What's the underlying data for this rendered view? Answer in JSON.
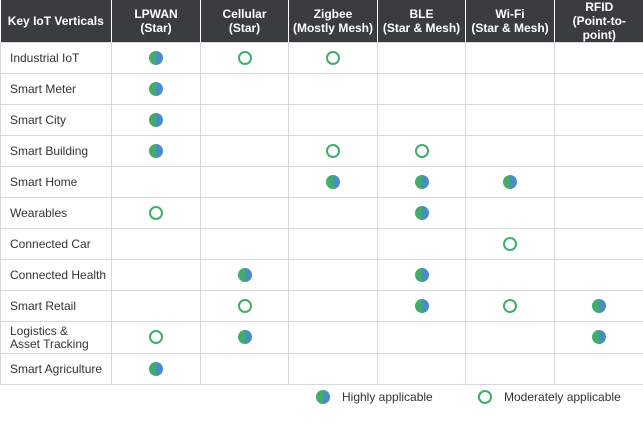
{
  "header": {
    "first_column": "Key IoT Verticals",
    "technologies": [
      {
        "name": "LPWAN",
        "topology": "(Star)"
      },
      {
        "name": "Cellular",
        "topology": "(Star)"
      },
      {
        "name": "Zigbee",
        "topology": "(Mostly Mesh)"
      },
      {
        "name": "BLE",
        "topology": "(Star & Mesh)"
      },
      {
        "name": "Wi-Fi",
        "topology": "(Star & Mesh)"
      },
      {
        "name": "RFID",
        "topology": "(Point-to-point)"
      }
    ]
  },
  "rows": [
    {
      "vertical": [
        "Industrial IoT"
      ],
      "ratings": [
        "high",
        "moderate",
        "moderate",
        "",
        "",
        ""
      ]
    },
    {
      "vertical": [
        "Smart Meter"
      ],
      "ratings": [
        "high",
        "",
        "",
        "",
        "",
        ""
      ]
    },
    {
      "vertical": [
        "Smart City"
      ],
      "ratings": [
        "high",
        "",
        "",
        "",
        "",
        ""
      ]
    },
    {
      "vertical": [
        "Smart Building"
      ],
      "ratings": [
        "high",
        "",
        "moderate",
        "moderate",
        "",
        ""
      ]
    },
    {
      "vertical": [
        "Smart Home"
      ],
      "ratings": [
        "",
        "",
        "high",
        "high",
        "high",
        ""
      ]
    },
    {
      "vertical": [
        "Wearables"
      ],
      "ratings": [
        "moderate",
        "",
        "",
        "high",
        "",
        ""
      ]
    },
    {
      "vertical": [
        "Connected Car"
      ],
      "ratings": [
        "",
        "",
        "",
        "",
        "moderate",
        ""
      ]
    },
    {
      "vertical": [
        "Connected Health"
      ],
      "ratings": [
        "",
        "high",
        "",
        "high",
        "",
        ""
      ]
    },
    {
      "vertical": [
        "Smart Retail"
      ],
      "ratings": [
        "",
        "moderate",
        "",
        "high",
        "moderate",
        "high"
      ]
    },
    {
      "vertical": [
        "Logistics &",
        "Asset Tracking"
      ],
      "ratings": [
        "moderate",
        "high",
        "",
        "",
        "",
        "high"
      ]
    },
    {
      "vertical": [
        "Smart Agriculture"
      ],
      "ratings": [
        "high",
        "",
        "",
        "",
        "",
        ""
      ]
    }
  ],
  "legend": {
    "high_label": "Highly applicable",
    "moderate_label": "Moderately applicable"
  },
  "colors": {
    "header_background": "#3a3d40",
    "high_dot_green": "#3fae6a",
    "high_dot_blue": "#4a8cc4",
    "moderate_ring": "#3fae6a",
    "grid_line": "#d9d9d9"
  }
}
